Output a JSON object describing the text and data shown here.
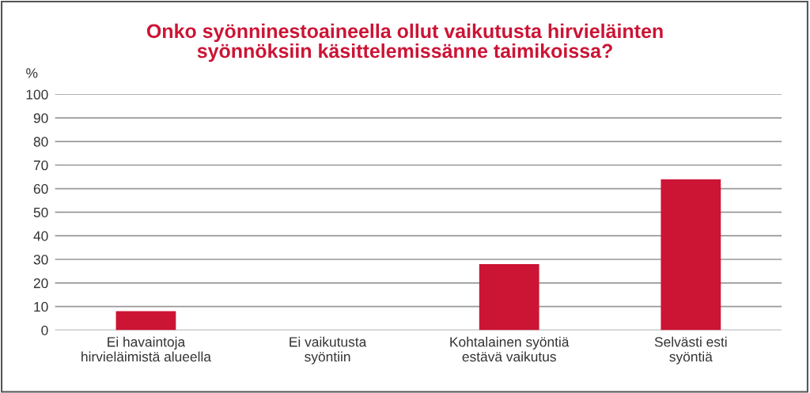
{
  "chart_data": {
    "type": "bar",
    "title": "Onko syönninestoaineella ollut vaikutusta hirvieläinten\nsyönnöksiin käsittelemissänne taimikoissa?",
    "ylabel": "%",
    "categories": [
      "Ei havaintoja\nhirvieläimistä alueella",
      "Ei vaikutusta\nsyöntiin",
      "Kohtalainen syöntiä\nestävä vaikutus",
      "Selvästi esti\nsyöntiä"
    ],
    "values": [
      8,
      0,
      28,
      64
    ],
    "color": "#cc1435",
    "ylim": [
      0,
      100
    ],
    "yticks": [
      0,
      10,
      20,
      30,
      40,
      50,
      60,
      70,
      80,
      90,
      100
    ],
    "grid": "y"
  }
}
